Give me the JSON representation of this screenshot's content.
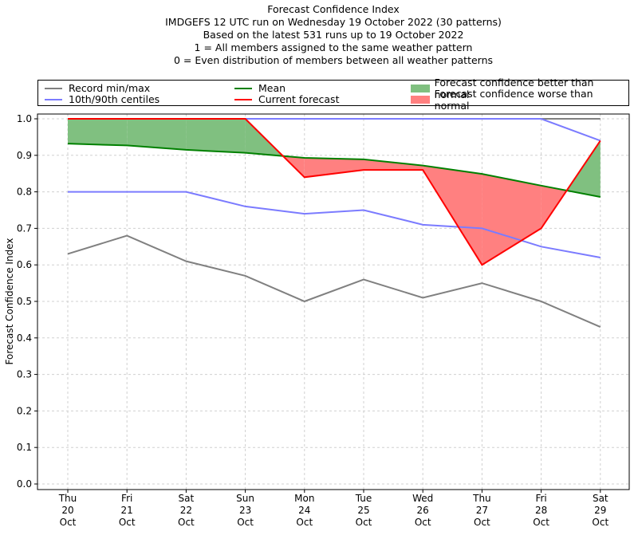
{
  "chart_data": {
    "type": "line",
    "title": "Forecast Confidence Index",
    "subtitle_lines": [
      "IMDGEFS 12 UTC run on Wednesday 19 October 2022 (30 patterns)",
      "Based on the latest 531 runs up to 19 October 2022",
      "1 = All members assigned to the same weather pattern",
      "0 = Even distribution of members between all weather patterns"
    ],
    "xlabel": "",
    "ylabel": "Forecast Confidence Index",
    "ylim": [
      0.0,
      1.0
    ],
    "yticks": [
      "0.0",
      "0.1",
      "0.2",
      "0.3",
      "0.4",
      "0.5",
      "0.6",
      "0.7",
      "0.8",
      "0.9",
      "1.0"
    ],
    "grid": true,
    "legend_position": "top",
    "categories": [
      [
        "Thu",
        "20",
        "Oct"
      ],
      [
        "Fri",
        "21",
        "Oct"
      ],
      [
        "Sat",
        "22",
        "Oct"
      ],
      [
        "Sun",
        "23",
        "Oct"
      ],
      [
        "Mon",
        "24",
        "Oct"
      ],
      [
        "Tue",
        "25",
        "Oct"
      ],
      [
        "Wed",
        "26",
        "Oct"
      ],
      [
        "Thu",
        "27",
        "Oct"
      ],
      [
        "Fri",
        "28",
        "Oct"
      ],
      [
        "Sat",
        "29",
        "Oct"
      ]
    ],
    "series": [
      {
        "name": "Record max",
        "legend": "Record min/max",
        "color": "#808080",
        "values": [
          1.0,
          1.0,
          1.0,
          1.0,
          1.0,
          1.0,
          1.0,
          1.0,
          1.0,
          1.0
        ]
      },
      {
        "name": "Record min",
        "legend": "Record min/max",
        "color": "#808080",
        "values": [
          0.63,
          0.68,
          0.61,
          0.57,
          0.5,
          0.56,
          0.51,
          0.55,
          0.5,
          0.43
        ]
      },
      {
        "name": "90th centile",
        "legend": "10th/90th centiles",
        "color": "#7b7bff",
        "values": [
          1.0,
          1.0,
          1.0,
          1.0,
          1.0,
          1.0,
          1.0,
          1.0,
          1.0,
          0.94
        ]
      },
      {
        "name": "10th centile",
        "legend": "10th/90th centiles",
        "color": "#7b7bff",
        "values": [
          0.8,
          0.8,
          0.8,
          0.76,
          0.74,
          0.75,
          0.71,
          0.7,
          0.65,
          0.62
        ]
      },
      {
        "name": "Mean",
        "legend": "Mean",
        "color": "#008000",
        "values": [
          0.932,
          0.927,
          0.915,
          0.907,
          0.893,
          0.889,
          0.872,
          0.849,
          0.817,
          0.786
        ]
      },
      {
        "name": "Current forecast",
        "legend": "Current forecast",
        "color": "#ff0000",
        "values": [
          1.0,
          1.0,
          1.0,
          1.0,
          0.84,
          0.86,
          0.86,
          0.6,
          0.7,
          0.94
        ]
      }
    ],
    "fills": [
      {
        "name": "Forecast confidence better than normal",
        "color": "#80c080",
        "between": [
          "Current forecast",
          "Mean"
        ],
        "where": "forecast > mean"
      },
      {
        "name": "Forecast confidence worse than normal",
        "color": "#ff8080",
        "between": [
          "Current forecast",
          "Mean"
        ],
        "where": "forecast < mean"
      }
    ]
  },
  "legend": {
    "items": [
      {
        "label": "Record min/max",
        "kind": "line",
        "color": "#808080"
      },
      {
        "label": "10th/90th centiles",
        "kind": "line",
        "color": "#7b7bff"
      },
      {
        "label": "Mean",
        "kind": "line",
        "color": "#008000"
      },
      {
        "label": "Current forecast",
        "kind": "line",
        "color": "#ff0000"
      },
      {
        "label": "Forecast confidence better than normal",
        "kind": "patch",
        "color": "#80c080"
      },
      {
        "label": "Forecast confidence worse than normal",
        "kind": "patch",
        "color": "#ff8080"
      }
    ]
  }
}
